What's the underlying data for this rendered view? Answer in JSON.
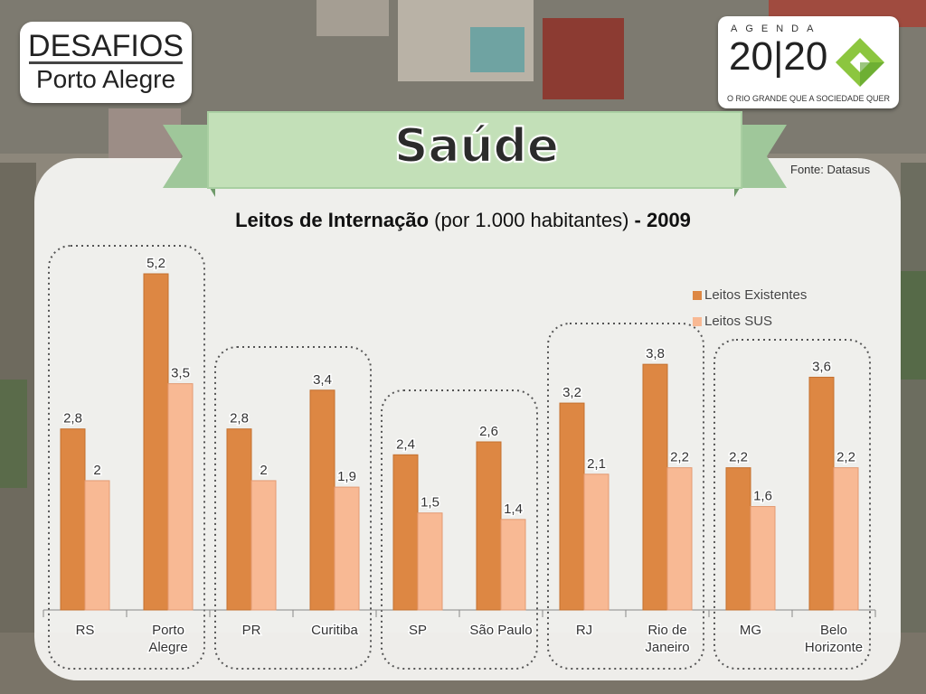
{
  "header": {
    "left_logo": {
      "line1": "DESAFIOS",
      "line2": "Porto Alegre"
    },
    "right_logo": {
      "agenda": "AGENDA",
      "year": "20|20",
      "tagline": "O RIO GRANDE QUE A SOCIEDADE QUER"
    },
    "ribbon_title": "Saúde"
  },
  "source": "Fonte: Datasus",
  "colors": {
    "existentes": "#dd8743",
    "sus": "#f8b994",
    "ribbon": "#c3e0b8",
    "ribbon_dark": "#9fc79a"
  },
  "chart_data": {
    "type": "bar",
    "title": {
      "bold": "Leitos de Internação",
      "normal": "(por 1.000 habitantes)",
      "suffix": "- 2009"
    },
    "categories": [
      "RS",
      "Porto Alegre",
      "PR",
      "Curitiba",
      "SP",
      "São Paulo",
      "RJ",
      "Rio de Janeiro",
      "MG",
      "Belo Horizonte"
    ],
    "category_lines": [
      [
        "RS"
      ],
      [
        "Porto",
        "Alegre"
      ],
      [
        "PR"
      ],
      [
        "Curitiba"
      ],
      [
        "SP"
      ],
      [
        "São Paulo"
      ],
      [
        "RJ"
      ],
      [
        "Rio de",
        "Janeiro"
      ],
      [
        "MG"
      ],
      [
        "Belo",
        "Horizonte"
      ]
    ],
    "series": [
      {
        "name": "Leitos Existentes",
        "values": [
          2.8,
          5.2,
          2.8,
          3.4,
          2.4,
          2.6,
          3.2,
          3.8,
          2.2,
          3.6
        ],
        "labels": [
          "2,8",
          "5,2",
          "2,8",
          "3,4",
          "2,4",
          "2,6",
          "3,2",
          "3,8",
          "2,2",
          "3,6"
        ]
      },
      {
        "name": "Leitos SUS",
        "values": [
          2.0,
          3.5,
          2.0,
          1.9,
          1.5,
          1.4,
          2.1,
          2.2,
          1.6,
          2.2
        ],
        "labels": [
          "2",
          "3,5",
          "2",
          "1,9",
          "1,5",
          "1,4",
          "2,1",
          "2,2",
          "1,6",
          "2,2"
        ]
      }
    ],
    "ylim": [
      0,
      5.2
    ],
    "legend_position": "top-right",
    "grid": false
  }
}
